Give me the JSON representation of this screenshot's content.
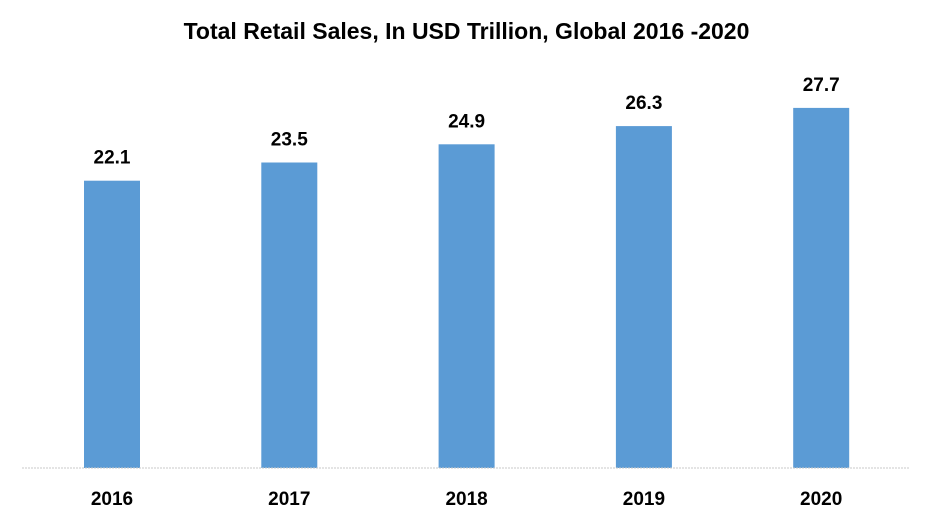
{
  "chart_data": {
    "type": "bar",
    "title": "Total Retail Sales, In USD Trillion, Global 2016 -2020",
    "categories": [
      "2016",
      "2017",
      "2018",
      "2019",
      "2020"
    ],
    "values": [
      22.1,
      23.5,
      24.9,
      26.3,
      27.7
    ],
    "value_labels": [
      "22.1",
      "23.5",
      "24.9",
      "26.3",
      "27.7"
    ],
    "xlabel": "",
    "ylabel": "",
    "ylim": [
      0,
      30
    ],
    "grid": false,
    "legend": "none",
    "bar_color": "#5B9BD5"
  }
}
